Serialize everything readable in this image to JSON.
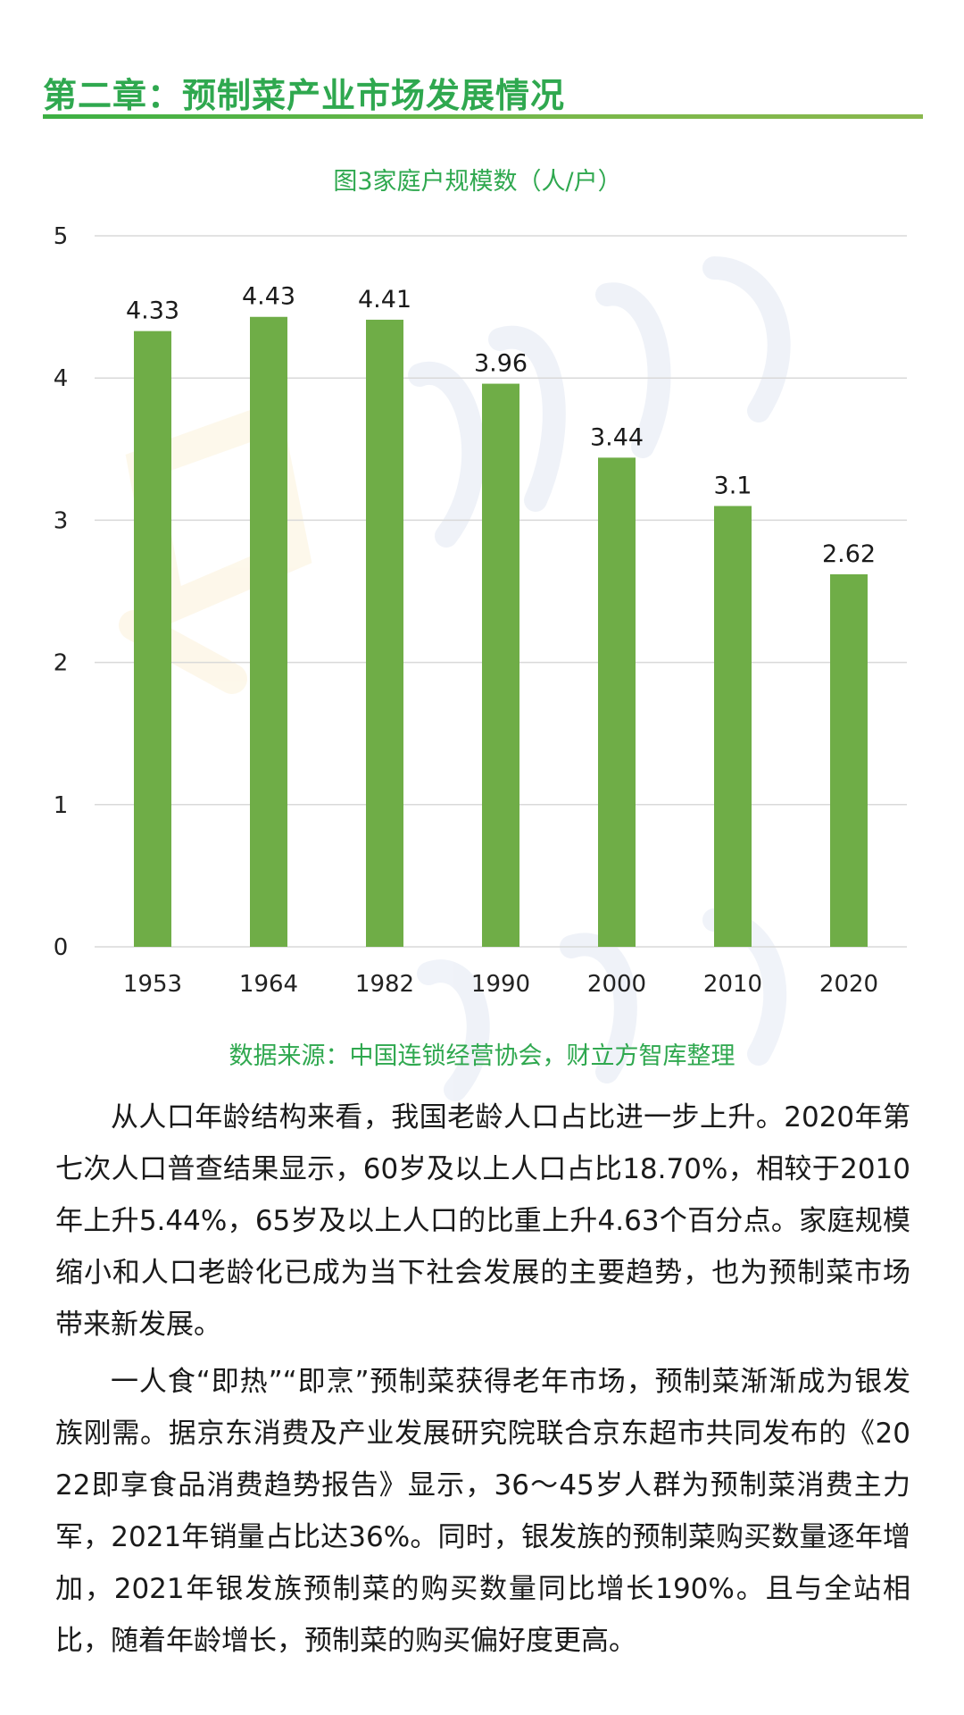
{
  "header": {
    "chapter_title": "第二章：预制菜产业市场发展情况"
  },
  "colors": {
    "accent": "#2fa84f",
    "bar": "#6fad47",
    "grid": "#d9d9d9"
  },
  "chart_data": {
    "type": "bar",
    "title": "图3家庭户规模数（人/户）",
    "categories": [
      "1953",
      "1964",
      "1982",
      "1990",
      "2000",
      "2010",
      "2020"
    ],
    "values": [
      4.33,
      4.43,
      4.41,
      3.96,
      3.44,
      3.1,
      2.62
    ],
    "value_labels": [
      "4.33",
      "4.43",
      "4.41",
      "3.96",
      "3.44",
      "3.1",
      "2.62"
    ],
    "yticks": [
      "0",
      "1",
      "2",
      "3",
      "4",
      "5"
    ],
    "ylim": [
      0,
      5
    ],
    "xlabel": "",
    "ylabel": "",
    "grid": true,
    "legend": "none"
  },
  "source": {
    "text": "数据来源：中国连锁经营协会，财立方智库整理"
  },
  "body": {
    "paragraphs": [
      "从人口年龄结构来看，我国老龄人口占比进一步上升。2020年第七次人口普查结果显示，60岁及以上人口占比18.70%，相较于2010年上升5.44%，65岁及以上人口的比重上升4.63个百分点。家庭规模缩小和人口老龄化已成为当下社会发展的主要趋势，也为预制菜市场带来新发展。",
      "一人食“即热”“即烹”预制菜获得老年市场，预制菜渐渐成为银发族刚需。据京东消费及产业发展研究院联合京东超市共同发布的《2022即享食品消费趋势报告》显示，36～45岁人群为预制菜消费主力军，2021年销量占比达36%。同时，银发族的预制菜购买数量逐年增加，2021年银发族预制菜的购买数量同比增长190%。且与全站相比，随着年龄增长，预制菜的购买偏好度更高。"
    ]
  }
}
